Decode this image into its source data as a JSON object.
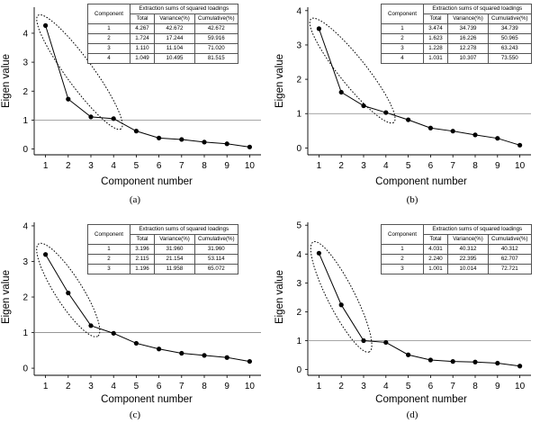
{
  "figure": {
    "panels": [
      {
        "caption": "(a)",
        "table": {
          "component_header": "Component",
          "group_header": "Extraction sums of squared loadings",
          "columns": [
            "Total",
            "Variance(%)",
            "Cumulative(%)"
          ],
          "rows": [
            {
              "component": "1",
              "total": "4.267",
              "variance": "42.672",
              "cumulative": "42.672"
            },
            {
              "component": "2",
              "total": "1.724",
              "variance": "17.244",
              "cumulative": "59.916"
            },
            {
              "component": "3",
              "total": "1.110",
              "variance": "11.104",
              "cumulative": "71.020"
            },
            {
              "component": "4",
              "total": "1.049",
              "variance": "10.495",
              "cumulative": "81.515"
            }
          ]
        }
      },
      {
        "caption": "(b)",
        "table": {
          "component_header": "Component",
          "group_header": "Extraction sums of squared loadings",
          "columns": [
            "Total",
            "Variance(%)",
            "Cumulative(%)"
          ],
          "rows": [
            {
              "component": "1",
              "total": "3.474",
              "variance": "34.739",
              "cumulative": "34.739"
            },
            {
              "component": "2",
              "total": "1.623",
              "variance": "16.226",
              "cumulative": "50.965"
            },
            {
              "component": "3",
              "total": "1.228",
              "variance": "12.278",
              "cumulative": "63.243"
            },
            {
              "component": "4",
              "total": "1.031",
              "variance": "10.307",
              "cumulative": "73.550"
            }
          ]
        }
      },
      {
        "caption": "(c)",
        "table": {
          "component_header": "Component",
          "group_header": "Extraction sums of squared loadings",
          "columns": [
            "Total",
            "Variance(%)",
            "Cumulative(%)"
          ],
          "rows": [
            {
              "component": "1",
              "total": "3.196",
              "variance": "31.960",
              "cumulative": "31.960"
            },
            {
              "component": "2",
              "total": "2.115",
              "variance": "21.154",
              "cumulative": "53.114"
            },
            {
              "component": "3",
              "total": "1.196",
              "variance": "11.958",
              "cumulative": "65.072"
            }
          ]
        }
      },
      {
        "caption": "(d)",
        "table": {
          "component_header": "Component",
          "group_header": "Extraction sums of squared loadings",
          "columns": [
            "Total",
            "Variance(%)",
            "Cumulative(%)"
          ],
          "rows": [
            {
              "component": "1",
              "total": "4.031",
              "variance": "40.312",
              "cumulative": "40.312"
            },
            {
              "component": "2",
              "total": "2.240",
              "variance": "22.395",
              "cumulative": "62.707"
            },
            {
              "component": "3",
              "total": "1.001",
              "variance": "10.014",
              "cumulative": "72.721"
            }
          ]
        }
      }
    ]
  },
  "chart_data": [
    {
      "type": "line",
      "caption": "(a)",
      "xlabel": "Component number",
      "ylabel": "Eigen value",
      "x": [
        1,
        2,
        3,
        4,
        5,
        6,
        7,
        8,
        9,
        10
      ],
      "x_ticks": [
        1,
        2,
        3,
        4,
        5,
        6,
        7,
        8,
        9,
        10
      ],
      "y_ticks": [
        0,
        1,
        2,
        3,
        4
      ],
      "xlim": [
        0.5,
        10.5
      ],
      "ylim": [
        -0.2,
        4.9
      ],
      "reference_line_y": 1,
      "highlighted_components": [
        1,
        2,
        3,
        4
      ],
      "series": [
        {
          "values": [
            4.267,
            1.724,
            1.11,
            1.049,
            0.62,
            0.38,
            0.33,
            0.24,
            0.18,
            0.07
          ]
        }
      ]
    },
    {
      "type": "line",
      "caption": "(b)",
      "xlabel": "Component number",
      "ylabel": "Eigen value",
      "x": [
        1,
        2,
        3,
        4,
        5,
        6,
        7,
        8,
        9,
        10
      ],
      "x_ticks": [
        1,
        2,
        3,
        4,
        5,
        6,
        7,
        8,
        9,
        10
      ],
      "y_ticks": [
        0,
        1,
        2,
        3,
        4
      ],
      "xlim": [
        0.5,
        10.5
      ],
      "ylim": [
        -0.2,
        4.1
      ],
      "reference_line_y": 1,
      "highlighted_components": [
        1,
        2,
        3,
        4
      ],
      "series": [
        {
          "values": [
            3.474,
            1.623,
            1.228,
            1.031,
            0.82,
            0.58,
            0.49,
            0.38,
            0.28,
            0.08
          ]
        }
      ]
    },
    {
      "type": "line",
      "caption": "(c)",
      "xlabel": "Component number",
      "ylabel": "Eigen value",
      "x": [
        1,
        2,
        3,
        4,
        5,
        6,
        7,
        8,
        9,
        10
      ],
      "x_ticks": [
        1,
        2,
        3,
        4,
        5,
        6,
        7,
        8,
        9,
        10
      ],
      "y_ticks": [
        0,
        1,
        2,
        3,
        4
      ],
      "xlim": [
        0.5,
        10.5
      ],
      "ylim": [
        -0.2,
        4.1
      ],
      "reference_line_y": 1,
      "highlighted_components": [
        1,
        2,
        3
      ],
      "series": [
        {
          "values": [
            3.196,
            2.115,
            1.196,
            0.98,
            0.7,
            0.54,
            0.42,
            0.36,
            0.3,
            0.19
          ]
        }
      ]
    },
    {
      "type": "line",
      "caption": "(d)",
      "xlabel": "Component number",
      "ylabel": "Eigen value",
      "x": [
        1,
        2,
        3,
        4,
        5,
        6,
        7,
        8,
        9,
        10
      ],
      "x_ticks": [
        1,
        2,
        3,
        4,
        5,
        6,
        7,
        8,
        9,
        10
      ],
      "y_ticks": [
        0,
        1,
        2,
        3,
        4,
        5
      ],
      "xlim": [
        0.5,
        10.5
      ],
      "ylim": [
        -0.2,
        5.1
      ],
      "reference_line_y": 1,
      "highlighted_components": [
        1,
        2,
        3
      ],
      "series": [
        {
          "values": [
            4.031,
            2.24,
            1.001,
            0.94,
            0.51,
            0.33,
            0.28,
            0.26,
            0.22,
            0.12
          ]
        }
      ]
    }
  ]
}
